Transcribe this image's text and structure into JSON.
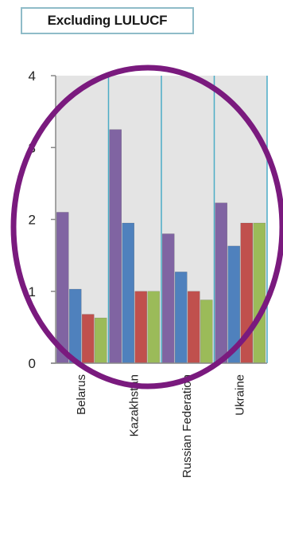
{
  "chart_data": {
    "type": "bar",
    "title": "Excluding LULUCF",
    "categories": [
      "Belarus",
      "Kazakhstan",
      "Russian Federation",
      "Ukraine"
    ],
    "series": [
      {
        "values": [
          2.1,
          3.25,
          1.8,
          2.23
        ]
      },
      {
        "values": [
          1.03,
          1.95,
          1.27,
          1.63
        ]
      },
      {
        "values": [
          0.68,
          1.0,
          1.0,
          1.95
        ]
      },
      {
        "values": [
          0.63,
          1.0,
          0.88,
          1.95
        ]
      }
    ],
    "ylim": [
      0,
      4
    ],
    "yticks": [
      0,
      1,
      2,
      3,
      4
    ],
    "grid": true,
    "colors": {
      "series": [
        "#8064a2",
        "#4f81bd",
        "#c0504d",
        "#9bbb59"
      ],
      "plot_background": "#e4e4e4",
      "category_separator": "#4bacc6",
      "annotation_ellipse": "#7a1a7e",
      "title_border": "#8fbcc8"
    },
    "annotation": {
      "shape": "ellipse"
    }
  }
}
